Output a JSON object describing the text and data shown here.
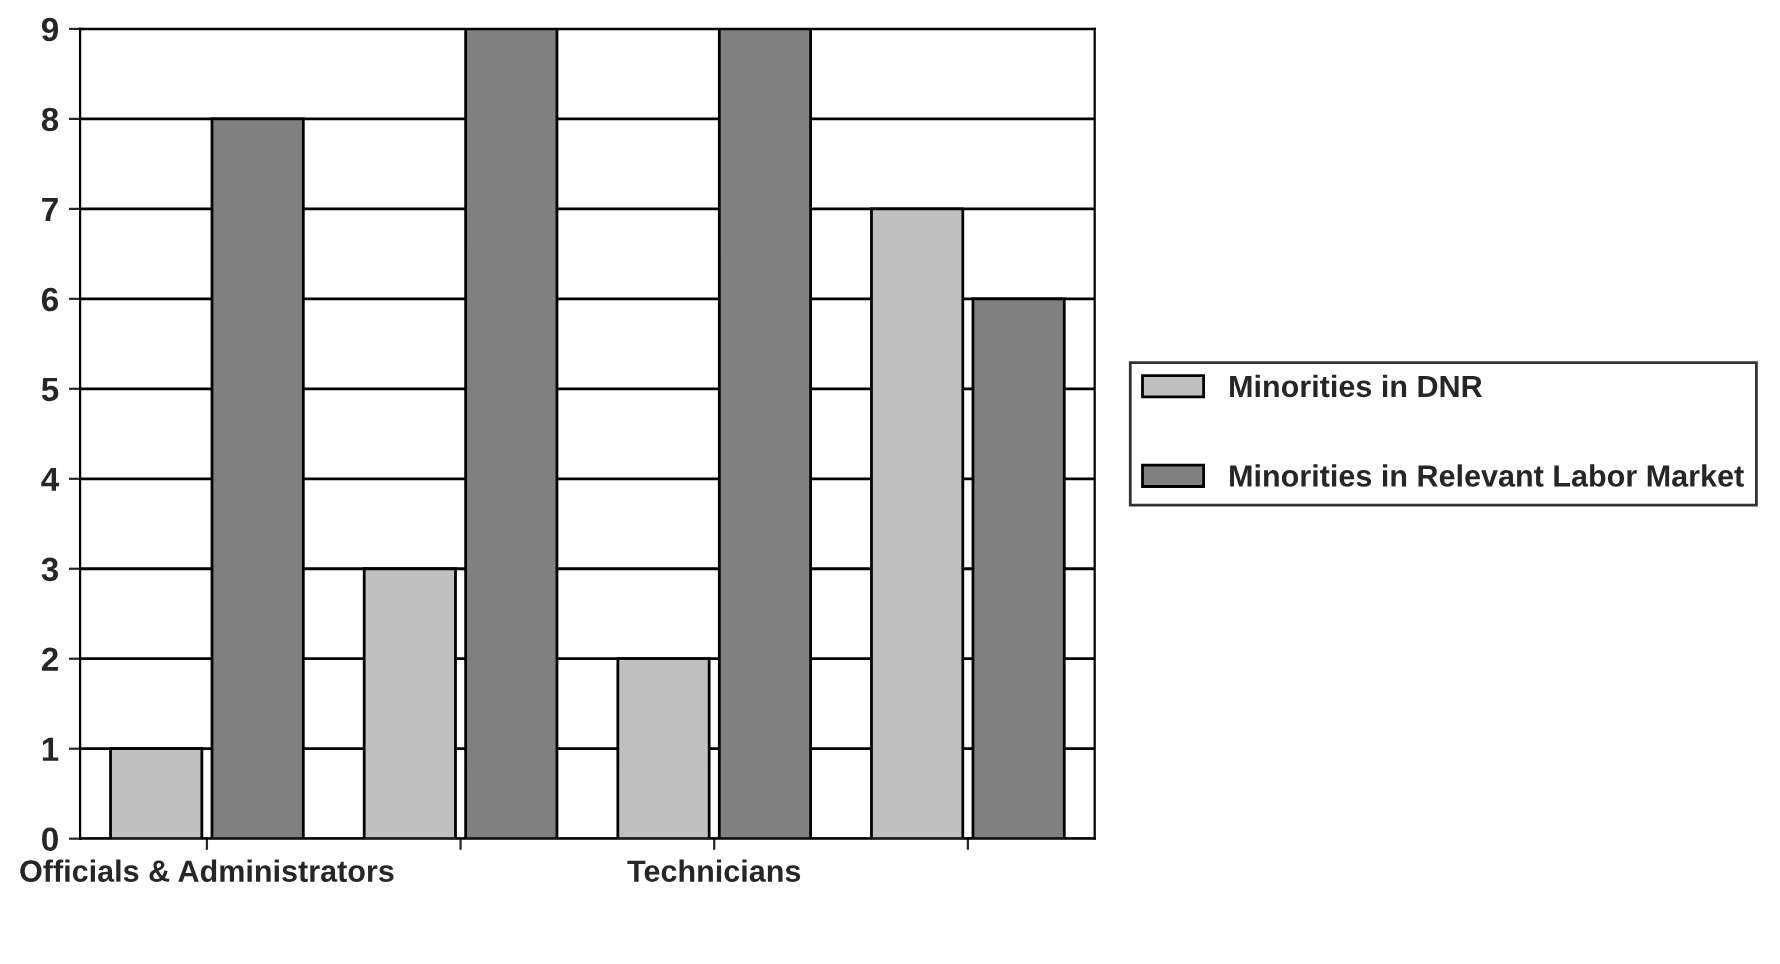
{
  "chart_data": {
    "type": "bar",
    "categories": [
      "Officials & Administrators",
      null,
      "Technicians",
      null
    ],
    "series": [
      {
        "name": "Minorities in DNR",
        "color": "#c0c0c0",
        "values": [
          1,
          3,
          2,
          7
        ]
      },
      {
        "name": "Minorities in Relevant Labor Market",
        "color": "#808080",
        "values": [
          8,
          9,
          9,
          6
        ]
      }
    ],
    "ylim": [
      0,
      9
    ],
    "yticks": [
      0,
      1,
      2,
      3,
      4,
      5,
      6,
      7,
      8,
      9
    ],
    "grid": "y",
    "legend": "right"
  }
}
